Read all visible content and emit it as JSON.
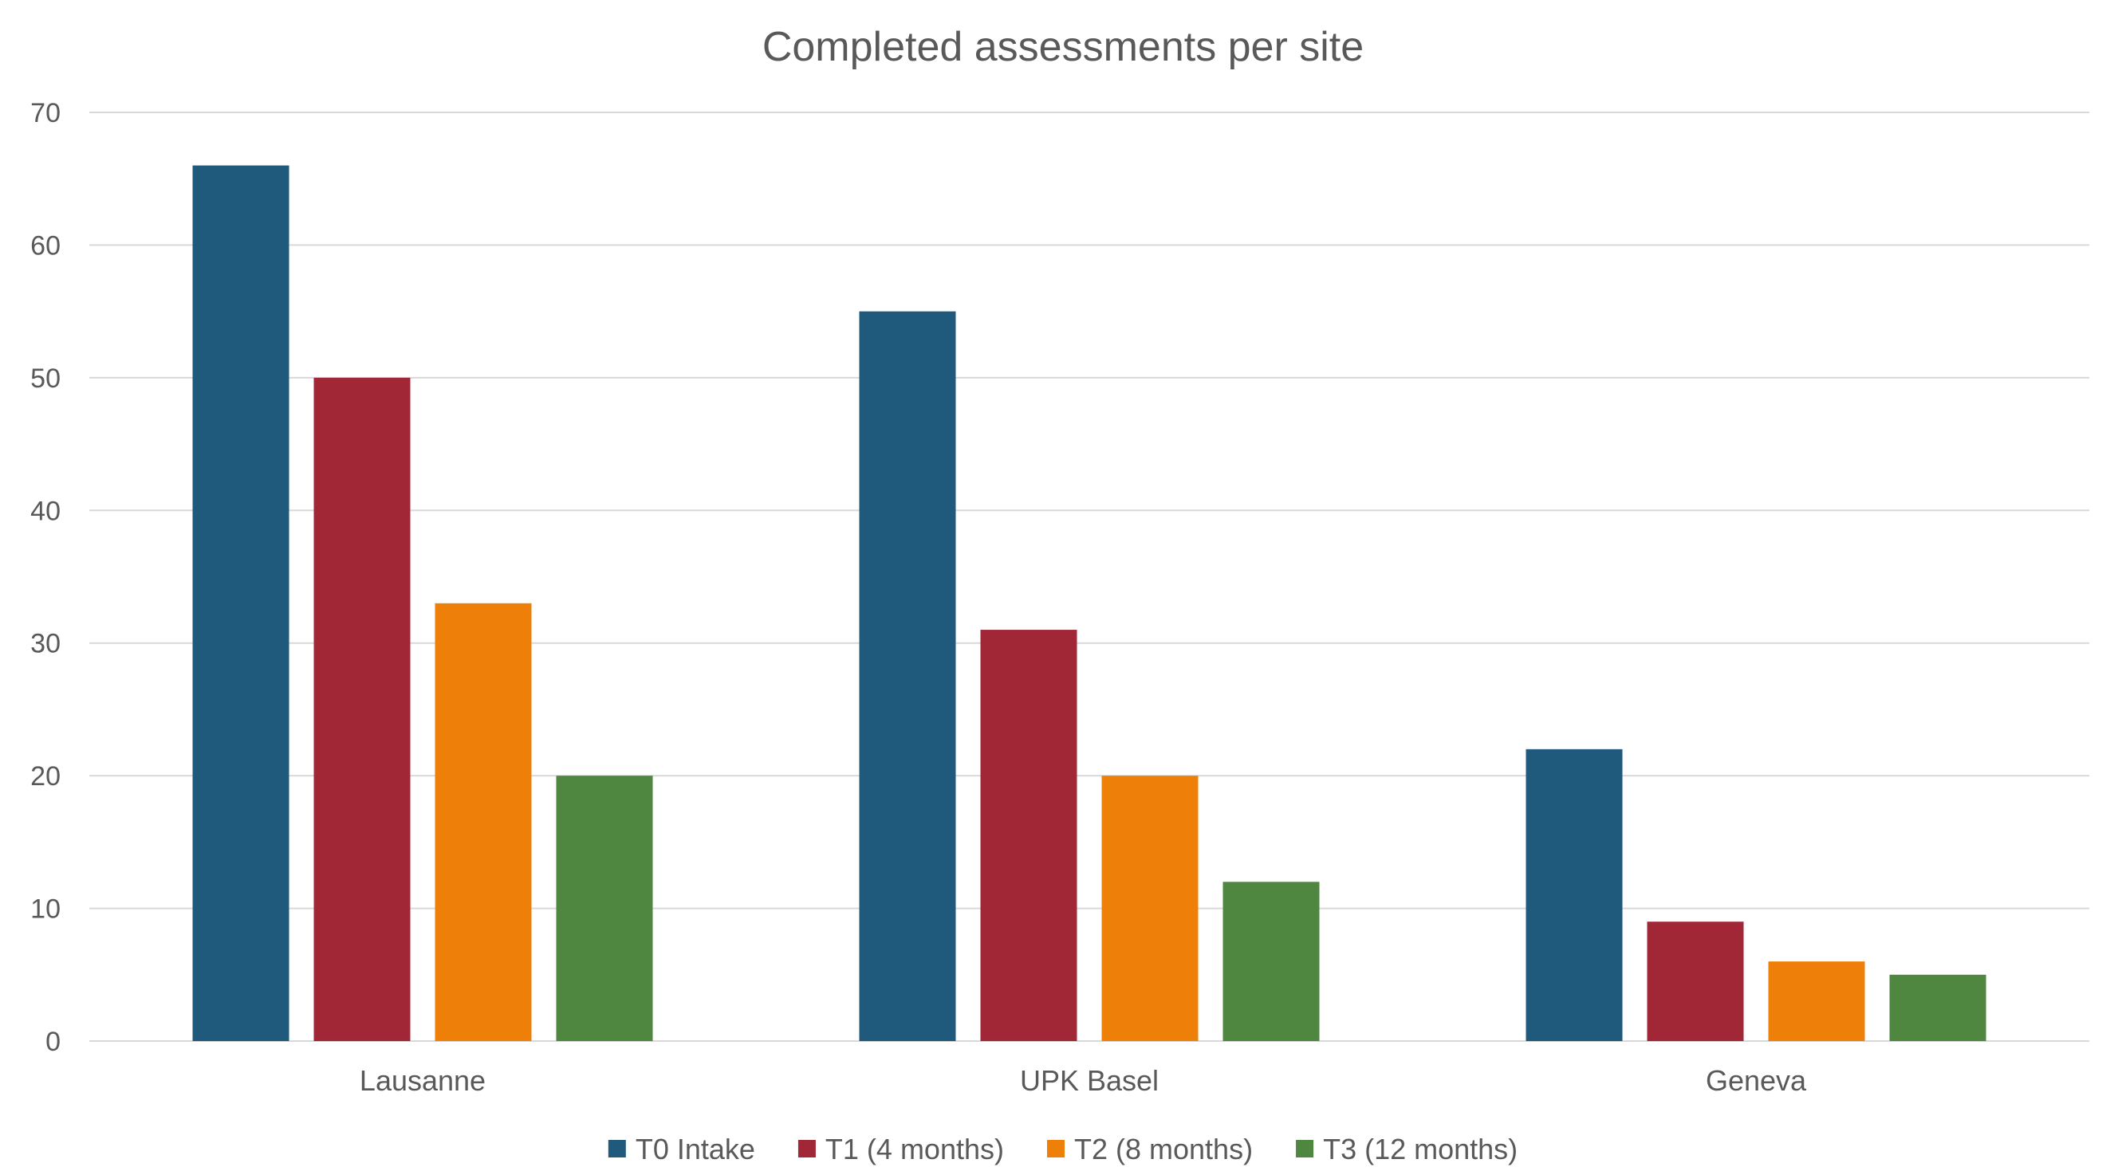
{
  "chart_data": {
    "type": "bar",
    "title": "Completed assessments per site",
    "xlabel": "",
    "ylabel": "",
    "ylim": [
      0,
      70
    ],
    "yticks": [
      0,
      10,
      20,
      30,
      40,
      50,
      60,
      70
    ],
    "grid": true,
    "legend_position": "bottom",
    "categories": [
      "Lausanne",
      "UPK Basel",
      "Geneva"
    ],
    "series": [
      {
        "name": "T0 Intake",
        "color": "#1f5a7d",
        "values": [
          66,
          55,
          22
        ]
      },
      {
        "name": "T1 (4 months)",
        "color": "#a12737",
        "values": [
          50,
          31,
          9
        ]
      },
      {
        "name": "T2 (8 months)",
        "color": "#ee800a",
        "values": [
          33,
          20,
          6
        ]
      },
      {
        "name": "T3 (12 months)",
        "color": "#4f8640",
        "values": [
          20,
          12,
          5
        ]
      }
    ]
  }
}
